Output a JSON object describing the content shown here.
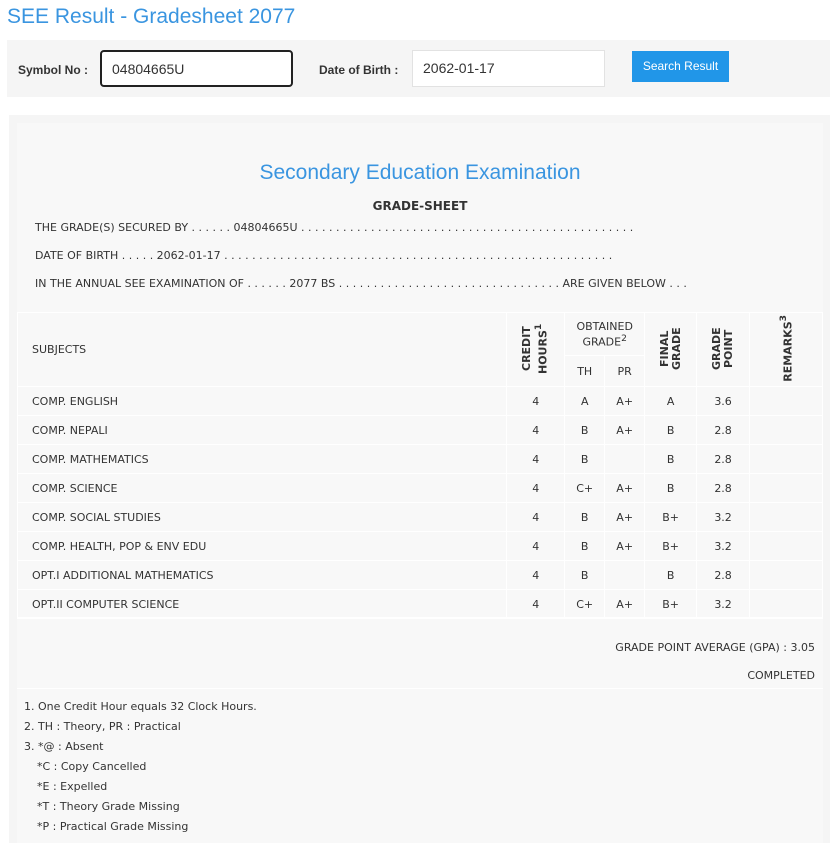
{
  "title": "SEE Result - Gradesheet 2077",
  "search": {
    "symbol_label": "Symbol No :",
    "symbol_value": "04804665U",
    "dob_label": "Date of Birth :",
    "dob_value": "2062-01-17",
    "button": "Search Result"
  },
  "sheet": {
    "exam_title": "Secondary Education Examination",
    "heading": "GRADE-SHEET",
    "line1": "THE GRADE(S) SECURED BY . . . . . . 04804665U . . . . . . . . . . . . . . . . . . . . . . . . . . . . . . . . . . . . . . . . . . . . . . . .",
    "line2": "DATE OF BIRTH . . . . . 2062-01-17 . . . . . . . . . . . . . . . . . . . . . . . . . . . . . . . . . . . . . . . . . . . . . . . . . . . . . . . .",
    "line3": "IN THE ANNUAL SEE EXAMINATION OF . . . . . . 2077 BS . . . . . . . . . . . . . . . . . . . . . . . . . . . . . . . . ARE GIVEN BELOW . . .",
    "headers": {
      "subjects": "SUBJECTS",
      "credit": "CREDIT HOURS",
      "credit_sup": "1",
      "obtained": "OBTAINED GRADE",
      "obtained_sup": "2",
      "th": "TH",
      "pr": "PR",
      "final": "FINAL GRADE",
      "point": "GRADE POINT",
      "remarks": "REMARKS",
      "remarks_sup": "3"
    },
    "rows": [
      {
        "subject": "COMP. ENGLISH",
        "credit": "4",
        "th": "A",
        "pr": "A+",
        "final": "A",
        "point": "3.6",
        "remarks": ""
      },
      {
        "subject": "COMP. NEPALI",
        "credit": "4",
        "th": "B",
        "pr": "A+",
        "final": "B",
        "point": "2.8",
        "remarks": ""
      },
      {
        "subject": "COMP. MATHEMATICS",
        "credit": "4",
        "th": "B",
        "pr": "",
        "final": "B",
        "point": "2.8",
        "remarks": ""
      },
      {
        "subject": "COMP. SCIENCE",
        "credit": "4",
        "th": "C+",
        "pr": "A+",
        "final": "B",
        "point": "2.8",
        "remarks": ""
      },
      {
        "subject": "COMP. SOCIAL STUDIES",
        "credit": "4",
        "th": "B",
        "pr": "A+",
        "final": "B+",
        "point": "3.2",
        "remarks": ""
      },
      {
        "subject": "COMP. HEALTH, POP & ENV EDU",
        "credit": "4",
        "th": "B",
        "pr": "A+",
        "final": "B+",
        "point": "3.2",
        "remarks": ""
      },
      {
        "subject": "OPT.I ADDITIONAL MATHEMATICS",
        "credit": "4",
        "th": "B",
        "pr": "",
        "final": "B",
        "point": "2.8",
        "remarks": ""
      },
      {
        "subject": "OPT.II COMPUTER SCIENCE",
        "credit": "4",
        "th": "C+",
        "pr": "A+",
        "final": "B+",
        "point": "3.2",
        "remarks": ""
      }
    ],
    "gpa": "GRADE POINT AVERAGE (GPA) : 3.05",
    "status": "COMPLETED",
    "notes": [
      "1. One Credit Hour equals 32 Clock Hours.",
      "2. TH : Theory, PR : Practical",
      "3. *@ : Absent",
      "   *C : Copy Cancelled",
      "   *E : Expelled",
      "   *T : Theory Grade Missing",
      "   *P : Practical Grade Missing"
    ]
  }
}
